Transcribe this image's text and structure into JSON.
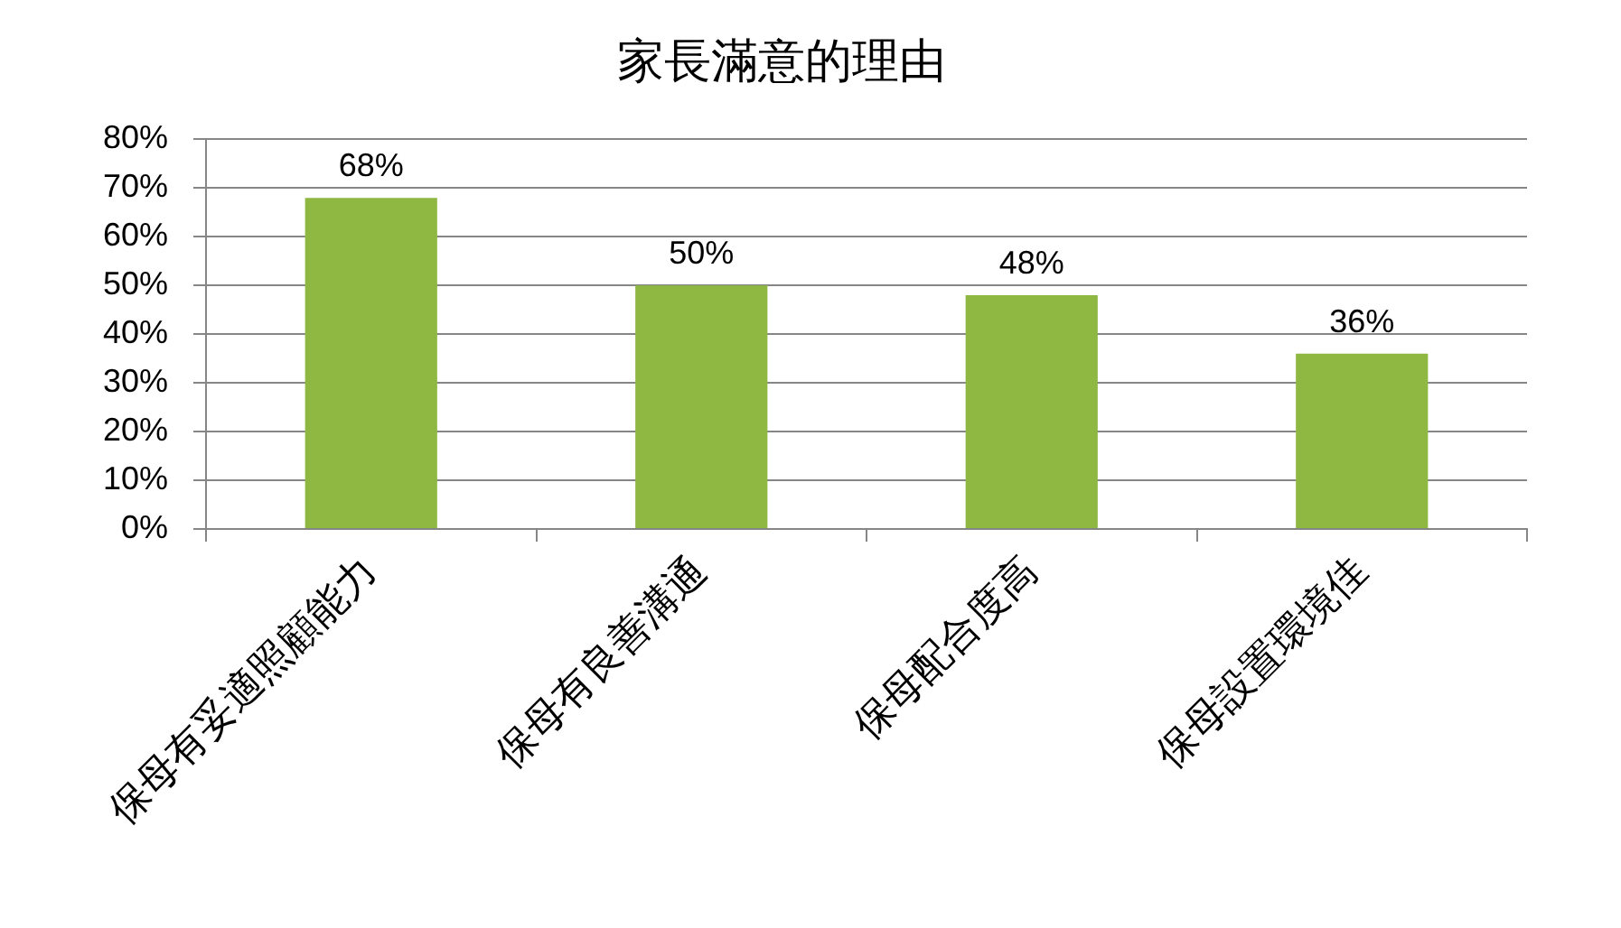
{
  "chart_data": {
    "type": "bar",
    "title": "家長滿意的理由",
    "categories": [
      "保母有妥適照顧能力",
      "保母有良善溝通",
      "保母配合度高",
      "保母設置環境佳"
    ],
    "values": [
      68,
      50,
      48,
      36
    ],
    "color": "#8fb843",
    "value_labels": [
      "68%",
      "50%",
      "48%",
      "36%"
    ],
    "ylim": [
      0,
      80
    ],
    "yticks": [
      {
        "value": 0,
        "label": "0%"
      },
      {
        "value": 10,
        "label": "10%"
      },
      {
        "value": 20,
        "label": "20%"
      },
      {
        "value": 30,
        "label": "30%"
      },
      {
        "value": 40,
        "label": "40%"
      },
      {
        "value": 50,
        "label": "50%"
      },
      {
        "value": 60,
        "label": "60%"
      },
      {
        "value": 70,
        "label": "70%"
      },
      {
        "value": 80,
        "label": "80%"
      }
    ],
    "grid": "y",
    "legend": false
  }
}
